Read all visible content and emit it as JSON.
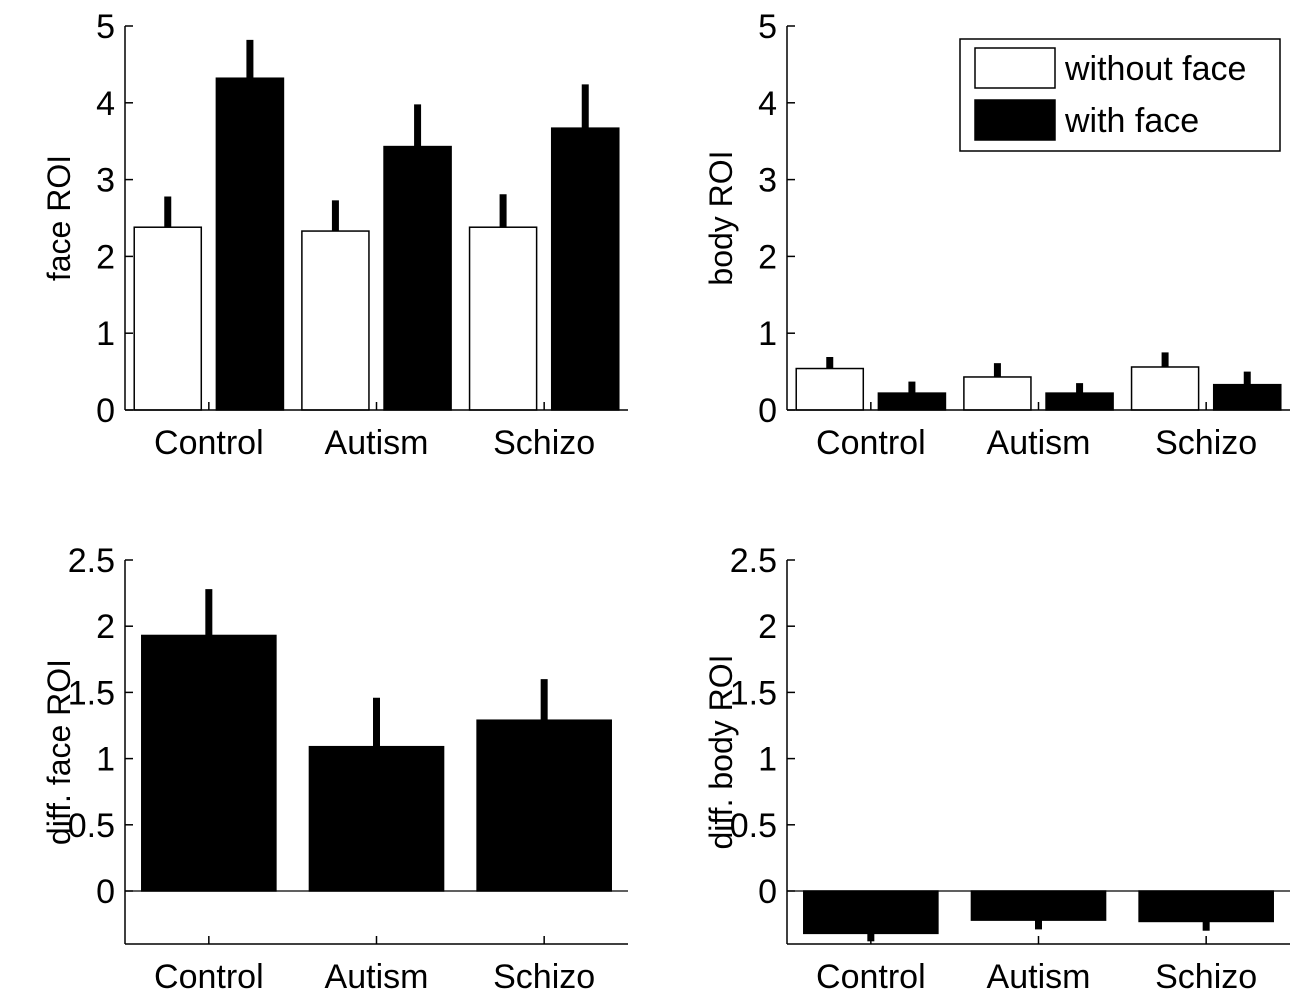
{
  "chart_data": [
    {
      "type": "bar",
      "categories": [
        "Control",
        "Autism",
        "Schizo"
      ],
      "xlabel": "",
      "ylabel": "face ROI",
      "ylim": [
        0,
        5
      ],
      "yticks": [
        "0",
        "1",
        "2",
        "3",
        "4",
        "5"
      ],
      "series": [
        {
          "name": "without face",
          "color": "#ffffff",
          "values": [
            2.38,
            2.33,
            2.38
          ],
          "errors": [
            0.4,
            0.4,
            0.43
          ]
        },
        {
          "name": "with face",
          "color": "#000000",
          "values": [
            4.32,
            3.43,
            3.67
          ],
          "errors": [
            0.5,
            0.55,
            0.57
          ]
        }
      ],
      "legend": false
    },
    {
      "type": "bar",
      "categories": [
        "Control",
        "Autism",
        "Schizo"
      ],
      "xlabel": "",
      "ylabel": "body ROI",
      "ylim": [
        0,
        5
      ],
      "yticks": [
        "0",
        "1",
        "2",
        "3",
        "4",
        "5"
      ],
      "series": [
        {
          "name": "without face",
          "color": "#ffffff",
          "values": [
            0.54,
            0.43,
            0.56
          ],
          "errors": [
            0.15,
            0.18,
            0.19
          ]
        },
        {
          "name": "with face",
          "color": "#000000",
          "values": [
            0.22,
            0.22,
            0.33
          ],
          "errors": [
            0.15,
            0.13,
            0.17
          ]
        }
      ],
      "legend": true,
      "legend_position": "top-right"
    },
    {
      "type": "bar",
      "categories": [
        "Control",
        "Autism",
        "Schizo"
      ],
      "xlabel": "",
      "ylabel": "diff. face ROI",
      "ylim": [
        -0.4,
        2.5
      ],
      "yticks": [
        "0",
        "0.5",
        "1",
        "1.5",
        "2",
        "2.5"
      ],
      "series": [
        {
          "color": "#000000",
          "values": [
            1.93,
            1.09,
            1.29
          ],
          "errors": [
            0.35,
            0.37,
            0.31
          ]
        }
      ],
      "legend": false
    },
    {
      "type": "bar",
      "categories": [
        "Control",
        "Autism",
        "Schizo"
      ],
      "xlabel": "",
      "ylabel": "diff. body ROI",
      "ylim": [
        -0.4,
        2.5
      ],
      "yticks": [
        "0",
        "0.5",
        "1",
        "1.5",
        "2",
        "2.5"
      ],
      "series": [
        {
          "color": "#000000",
          "values": [
            -0.32,
            -0.22,
            -0.23
          ],
          "errors": [
            0.06,
            0.07,
            0.07
          ]
        }
      ],
      "legend": false
    }
  ]
}
